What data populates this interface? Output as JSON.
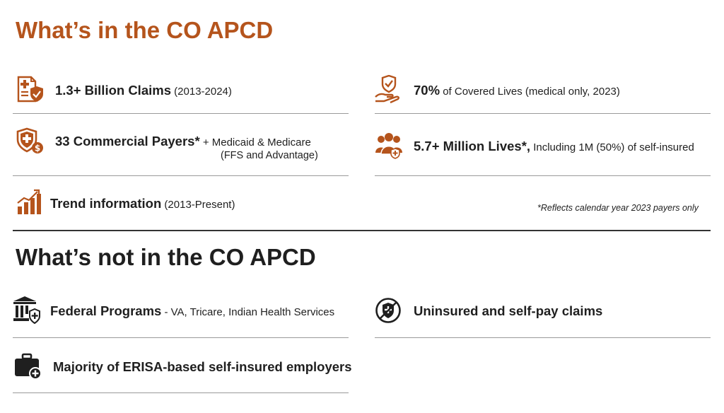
{
  "section_in": {
    "title": "What’s in the CO APCD",
    "items": [
      {
        "icon": "medical-document-shield-icon",
        "bold": "1.3+ Billion Claims",
        "rest": " (2013-2024)"
      },
      {
        "icon": "shield-dollar-icon",
        "bold": "33 Commercial Payers*",
        "rest": " + Medicaid & Medicare",
        "line2": "(FFS and Advantage)"
      },
      {
        "icon": "bar-chart-trend-icon",
        "bold": "Trend information",
        "rest": " (2013-Present)"
      },
      {
        "icon": "hand-shield-icon",
        "bold": "70%",
        "rest": " of Covered Lives (medical only, 2023)"
      },
      {
        "icon": "people-group-icon",
        "bold": "5.7+ Million Lives",
        "rest_bold": "*,",
        "rest": " Including 1M (50%) of self-insured"
      }
    ],
    "footnote": "*Reflects calendar year 2023 payers only"
  },
  "section_not": {
    "title": "What’s not in the CO APCD",
    "items": [
      {
        "icon": "bank-building-shield-icon",
        "bold": "Federal Programs",
        "rest": " - VA, Tricare, Indian Health Services"
      },
      {
        "icon": "briefcase-plus-icon",
        "bold": "Majority of ERISA-based self-insured employers",
        "rest": ""
      },
      {
        "icon": "no-insurance-shield-icon",
        "bold": "Uninsured and self-pay claims",
        "rest": ""
      }
    ]
  },
  "colors": {
    "accent": "#b5541c",
    "text": "#1f1f1f",
    "rule": "#9a9a9a"
  }
}
